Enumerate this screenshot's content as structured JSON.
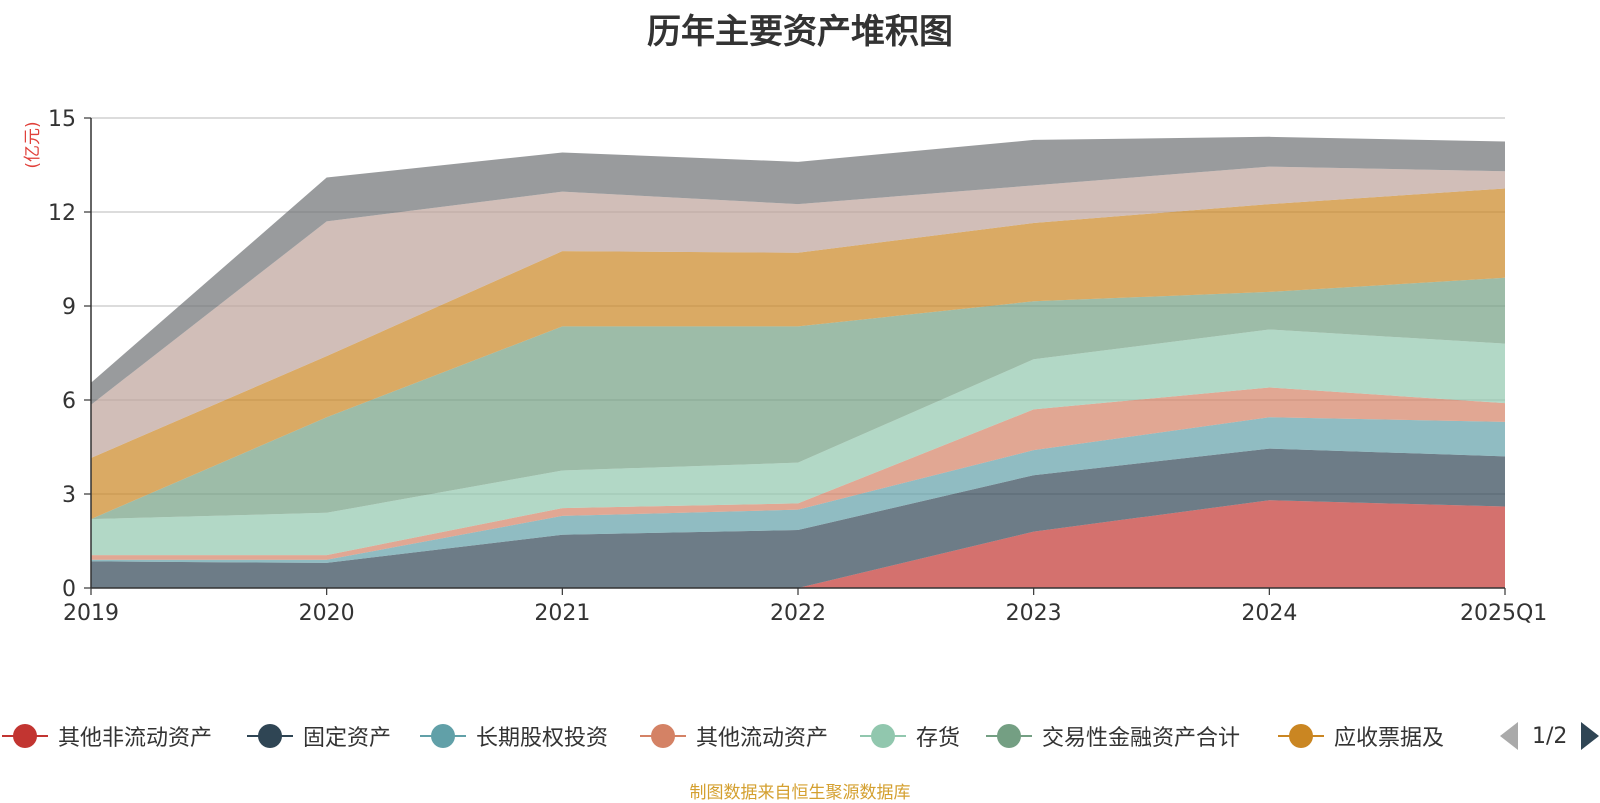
{
  "chart_data": {
    "type": "area",
    "stacked": true,
    "title": "历年主要资产堆积图",
    "ylabel": "(亿元)",
    "xlabel": "",
    "categories": [
      "2019",
      "2020",
      "2021",
      "2022",
      "2023",
      "2024",
      "2025Q1"
    ],
    "ylim": [
      0,
      15
    ],
    "yticks": [
      0,
      3,
      6,
      9,
      12,
      15
    ],
    "grid": true,
    "series": [
      {
        "name": "其他非流动资产",
        "color": "#c23531",
        "values": [
          0,
          0,
          0,
          0,
          1.8,
          2.8,
          2.6
        ]
      },
      {
        "name": "固定资产",
        "color": "#2f4554",
        "values": [
          0.85,
          0.8,
          1.7,
          1.85,
          1.8,
          1.65,
          1.6
        ]
      },
      {
        "name": "长期股权投资",
        "color": "#61a0a8",
        "values": [
          0.05,
          0.1,
          0.6,
          0.65,
          0.8,
          1.0,
          1.1
        ]
      },
      {
        "name": "其他流动资产",
        "color": "#d48265",
        "values": [
          0.15,
          0.15,
          0.25,
          0.2,
          1.3,
          0.95,
          0.6
        ]
      },
      {
        "name": "存货",
        "color": "#91c7ae",
        "values": [
          1.15,
          1.35,
          1.2,
          1.3,
          1.6,
          1.85,
          1.9
        ]
      },
      {
        "name": "交易性金融资产合计",
        "color": "#749f83",
        "values": [
          0,
          3.05,
          4.6,
          4.35,
          1.85,
          1.2,
          2.1
        ]
      },
      {
        "name": "应收票据及",
        "color": "#ca8622",
        "values": [
          1.95,
          1.95,
          2.4,
          2.35,
          2.5,
          2.8,
          2.85
        ]
      },
      {
        "name": "",
        "color": "#bda29a",
        "values": [
          1.7,
          4.3,
          1.9,
          1.55,
          1.2,
          1.2,
          0.55
        ]
      },
      {
        "name": "",
        "color": "#6e7074",
        "values": [
          0.7,
          1.4,
          1.25,
          1.35,
          1.45,
          0.95,
          0.95
        ]
      }
    ],
    "legend": {
      "position": "bottom",
      "page": "1/2"
    }
  },
  "source_note": "制图数据来自恒生聚源数据库"
}
